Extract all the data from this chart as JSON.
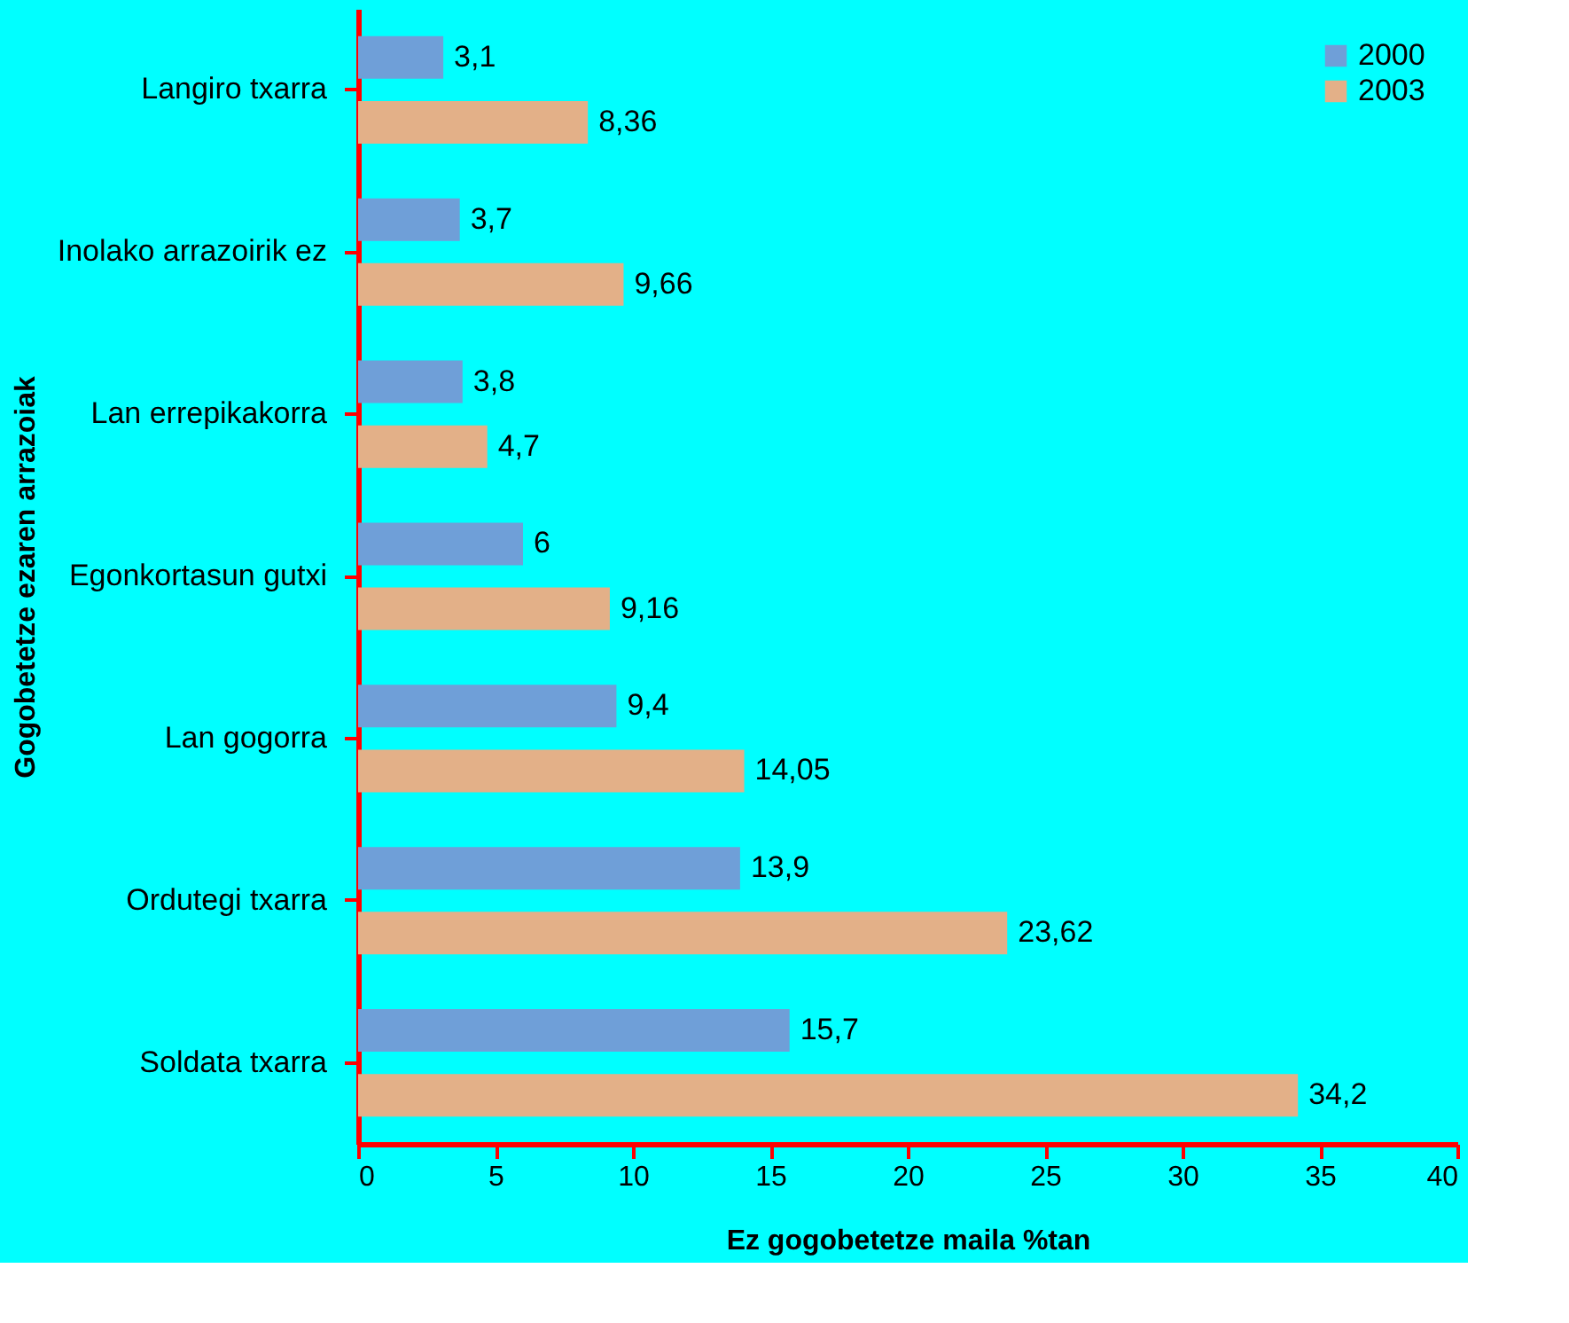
{
  "chart_data": {
    "type": "bar",
    "orientation": "horizontal",
    "xlabel": "Ez gogobetetze maila %tan",
    "ylabel": "Gogobetetze ezaren arrazoiak",
    "categories": [
      "Langiro txarra",
      "Inolako arrazoirik ez",
      "Lan errepikakorra",
      "Egonkortasun gutxi",
      "Lan gogorra",
      "Ordutegi txarra",
      "Soldata txarra"
    ],
    "series": [
      {
        "name": "2000",
        "color": "#6f9fd8",
        "values": [
          3.1,
          3.7,
          3.8,
          6,
          9.4,
          13.9,
          15.7
        ],
        "value_labels": [
          "3,1",
          "3,7",
          "3,8",
          "6",
          "9,4",
          "13,9",
          "15,7"
        ]
      },
      {
        "name": "2003",
        "color": "#e3b088",
        "values": [
          8.36,
          9.66,
          4.7,
          9.16,
          14.05,
          23.62,
          34.2
        ],
        "value_labels": [
          "8,36",
          "9,66",
          "4,7",
          "9,16",
          "14,05",
          "23,62",
          "34,2"
        ]
      }
    ],
    "xlim": [
      0,
      40
    ],
    "xticks": [
      0,
      5,
      10,
      15,
      20,
      25,
      30,
      35,
      40
    ],
    "grid": false,
    "legend": "top right"
  }
}
